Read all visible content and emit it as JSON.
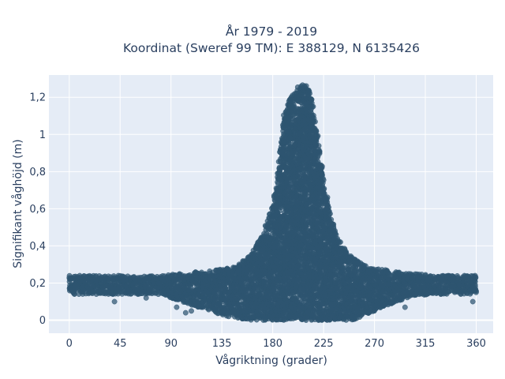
{
  "chart_data": {
    "type": "scatter",
    "title_line1": "År 1979 - 2019",
    "title_line2": "Koordinat (Sweref 99 TM): E 388129, N 6135426",
    "xlabel": "Vågriktning (grader)",
    "ylabel": "Signifikant våghöjd (m)",
    "xlim": [
      -18,
      375
    ],
    "ylim": [
      -0.07,
      1.32
    ],
    "x_ticks": [
      0,
      45,
      90,
      135,
      180,
      225,
      270,
      315,
      360
    ],
    "x_tick_labels": [
      "0",
      "45",
      "90",
      "135",
      "180",
      "225",
      "270",
      "315",
      "360"
    ],
    "y_ticks": [
      0,
      0.2,
      0.4,
      0.6,
      0.8,
      1.0,
      1.2
    ],
    "y_tick_labels": [
      "0",
      "0,2",
      "0,4",
      "0,6",
      "0,8",
      "1",
      "1,2"
    ],
    "grid": true,
    "marker_color": "#2e5570",
    "background_color": "#e5ecf6",
    "envelope": {
      "direction": [
        0,
        10,
        20,
        30,
        40,
        50,
        60,
        70,
        80,
        90,
        100,
        110,
        120,
        130,
        140,
        150,
        160,
        170,
        175,
        180,
        185,
        190,
        195,
        200,
        205,
        210,
        215,
        220,
        225,
        230,
        235,
        240,
        245,
        250,
        255,
        260,
        270,
        280,
        290,
        300,
        310,
        320,
        330,
        340,
        350,
        360
      ],
      "upper_height": [
        0.24,
        0.24,
        0.24,
        0.24,
        0.24,
        0.24,
        0.24,
        0.24,
        0.24,
        0.25,
        0.25,
        0.26,
        0.26,
        0.27,
        0.28,
        0.3,
        0.35,
        0.45,
        0.53,
        0.63,
        0.8,
        1.1,
        1.2,
        1.24,
        1.27,
        1.26,
        1.2,
        1.0,
        0.75,
        0.6,
        0.5,
        0.42,
        0.37,
        0.34,
        0.32,
        0.3,
        0.28,
        0.27,
        0.26,
        0.25,
        0.25,
        0.24,
        0.24,
        0.24,
        0.24,
        0.24
      ],
      "lower_height": [
        0.14,
        0.14,
        0.14,
        0.14,
        0.14,
        0.14,
        0.14,
        0.14,
        0.14,
        0.12,
        0.1,
        0.08,
        0.06,
        0.04,
        0.02,
        0.01,
        0.0,
        0.0,
        0.0,
        0.0,
        0.0,
        0.0,
        0.0,
        0.0,
        0.0,
        0.0,
        0.0,
        0.0,
        0.0,
        0.0,
        0.0,
        0.0,
        0.0,
        0.0,
        0.01,
        0.02,
        0.05,
        0.08,
        0.1,
        0.12,
        0.13,
        0.14,
        0.14,
        0.14,
        0.14,
        0.14
      ]
    },
    "sample_points": [
      [
        5,
        0.18
      ],
      [
        20,
        0.19
      ],
      [
        33,
        0.15
      ],
      [
        40,
        0.1
      ],
      [
        48,
        0.21
      ],
      [
        60,
        0.17
      ],
      [
        68,
        0.12
      ],
      [
        79,
        0.2
      ],
      [
        95,
        0.07
      ],
      [
        103,
        0.04
      ],
      [
        108,
        0.05
      ],
      [
        115,
        0.08
      ],
      [
        127,
        0.06
      ],
      [
        150,
        0.03
      ],
      [
        160,
        0.01
      ],
      [
        285,
        0.09
      ],
      [
        297,
        0.07
      ],
      [
        305,
        0.14
      ],
      [
        330,
        0.22
      ],
      [
        345,
        0.19
      ],
      [
        357,
        0.1
      ],
      [
        359,
        0.24
      ]
    ]
  }
}
